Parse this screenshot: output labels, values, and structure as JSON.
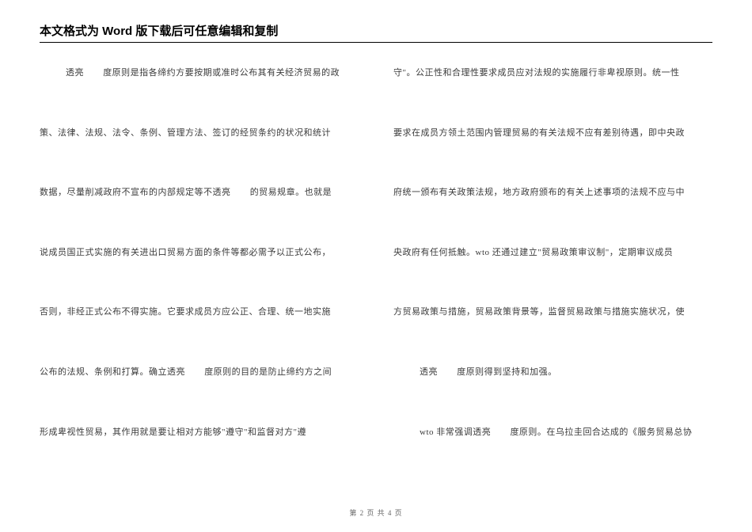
{
  "header": {
    "title": "本文格式为 Word 版下载后可任意编辑和复制"
  },
  "left_column": {
    "p1_a": "透亮",
    "p1_b": "度原则是指各缔约方要按期或准时公布其有关经济贸易的政",
    "p2": "策、法律、法规、法令、条例、管理方法、签订的经贸条约的状况和统计",
    "p3_a": "数据，尽量削减政府不宣布的内部规定等不透亮",
    "p3_b": "的贸易规章。也就是",
    "p4": "说成员国正式实施的有关进出口贸易方面的条件等都必需予以正式公布，",
    "p5": "否则，非经正式公布不得实施。它要求成员方应公正、合理、统一地实施",
    "p6_a": "公布的法规、条例和打算。确立透亮",
    "p6_b": "度原则的目的是防止缔约方之间",
    "p7": "形成卑视性贸易，其作用就是要让相对方能够\"遵守\"和监督对方\"遵"
  },
  "right_column": {
    "p1": "守\"。公正性和合理性要求成员应对法规的实施履行非卑视原则。统一性",
    "p2": "要求在成员方领土范围内管理贸易的有关法规不应有差别待遇，即中央政",
    "p3": "府统一颁布有关政策法规，地方政府颁布的有关上述事项的法规不应与中",
    "p4": "央政府有任何抵触。wto 还通过建立\"贸易政策审议制\"，定期审议成员",
    "p5": "方贸易政策与措施，贸易政策背景等，监督贸易政策与措施实施状况，使",
    "p6_a": "透亮",
    "p6_b": "度原则得到坚持和加强。",
    "p7_a": "wto 非常强调透亮",
    "p7_b": "度原则。在乌拉圭回合达成的《服务贸易总协"
  },
  "footer": {
    "text": "第 2 页 共 4 页"
  },
  "style": {
    "body_fontsize": 11,
    "header_fontsize": 15,
    "footer_fontsize": 9,
    "text_color": "#3b3b3b",
    "header_color": "#000000",
    "footer_color": "#666666",
    "background": "#ffffff",
    "border_color": "#000000",
    "line_gap": 58
  }
}
